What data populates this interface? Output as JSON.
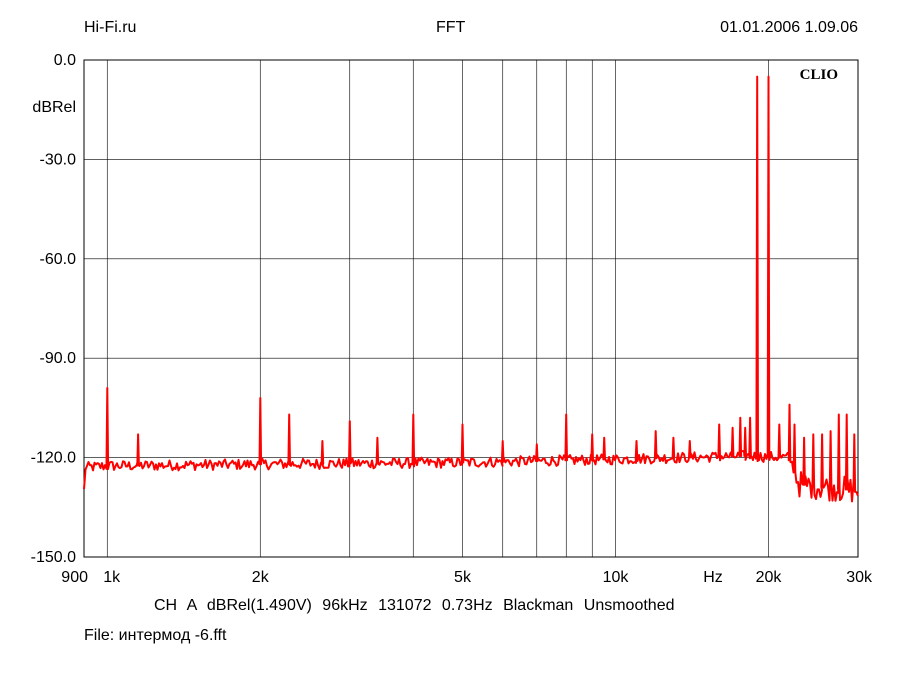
{
  "header": {
    "left": "Hi-Fi.ru",
    "center": "FFT",
    "right": "01.01.2006 1.09.06"
  },
  "brand": "CLIO",
  "settings_line": "CH A   dBRel(1.490V)   96kHz   131072   0.73Hz   Blackman   Unsmoothed",
  "file_line": "File: интермод -6.fft",
  "colors": {
    "trace": "#ff0000",
    "grid": "#000000",
    "background": "#ffffff"
  },
  "chart_data": {
    "type": "line",
    "x_scale": "log",
    "xlim": [
      900,
      30000
    ],
    "ylim": [
      -150,
      0
    ],
    "y_unit_label": "dBRel",
    "x_unit_label": "Hz",
    "y_ticks": [
      "0.0",
      "-30.0",
      "-60.0",
      "-90.0",
      "-120.0",
      "-150.0"
    ],
    "y_tick_values": [
      0,
      -30,
      -60,
      -90,
      -120,
      -150
    ],
    "x_tick_labels": [
      {
        "value": 900,
        "label": "900"
      },
      {
        "value": 1000,
        "label": "1k"
      },
      {
        "value": 2000,
        "label": "2k"
      },
      {
        "value": 5000,
        "label": "5k"
      },
      {
        "value": 10000,
        "label": "10k"
      },
      {
        "value": 20000,
        "label": "20k"
      },
      {
        "value": 30000,
        "label": "30k"
      }
    ],
    "x_gridlines": [
      1000,
      2000,
      3000,
      4000,
      5000,
      6000,
      7000,
      8000,
      9000,
      10000,
      20000
    ],
    "grid": true,
    "series": [
      {
        "noise_floor": [
          [
            900,
            -123
          ],
          [
            1000,
            -122.5
          ],
          [
            2000,
            -122
          ],
          [
            5000,
            -121.5
          ],
          [
            10000,
            -120.5
          ],
          [
            18000,
            -119.5
          ],
          [
            22000,
            -120
          ],
          [
            23000,
            -128
          ],
          [
            30000,
            -130
          ]
        ],
        "peaks": [
          [
            1000,
            -99
          ],
          [
            1150,
            -113
          ],
          [
            2000,
            -102
          ],
          [
            2280,
            -107
          ],
          [
            2650,
            -115
          ],
          [
            3000,
            -109
          ],
          [
            3400,
            -114
          ],
          [
            4000,
            -107
          ],
          [
            5000,
            -110
          ],
          [
            6000,
            -115
          ],
          [
            7000,
            -116
          ],
          [
            8000,
            -107
          ],
          [
            9000,
            -113
          ],
          [
            9500,
            -114
          ],
          [
            11000,
            -115
          ],
          [
            12000,
            -112
          ],
          [
            13000,
            -114
          ],
          [
            14000,
            -115
          ],
          [
            16000,
            -110
          ],
          [
            17000,
            -111
          ],
          [
            17600,
            -108
          ],
          [
            18000,
            -111
          ],
          [
            18400,
            -108
          ],
          [
            19000,
            -5
          ],
          [
            20000,
            -5
          ],
          [
            21000,
            -110
          ],
          [
            22000,
            -104
          ],
          [
            22500,
            -110
          ],
          [
            23500,
            -114
          ],
          [
            24500,
            -113
          ],
          [
            25500,
            -113
          ],
          [
            26500,
            -112
          ],
          [
            27500,
            -107
          ],
          [
            28500,
            -107
          ],
          [
            29500,
            -113
          ]
        ]
      }
    ]
  }
}
